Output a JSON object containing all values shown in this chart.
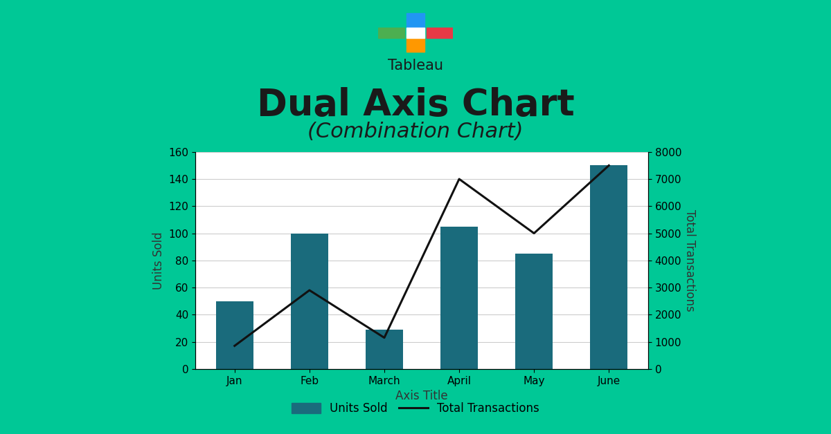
{
  "title": "Dual Axis Chart",
  "subtitle": "(Combination Chart)",
  "xlabel": "Axis Title",
  "ylabel_left": "Units Sold",
  "ylabel_right": "Total Transactions",
  "categories": [
    "Jan",
    "Feb",
    "March",
    "April",
    "May",
    "June"
  ],
  "units_sold": [
    50,
    100,
    29,
    105,
    85,
    150
  ],
  "total_transactions": [
    17,
    58,
    23,
    140,
    100,
    150
  ],
  "bar_color": "#1a6b7c",
  "line_color": "#111111",
  "background_color": "#00c896",
  "chart_bg_color": "#ffffff",
  "grid_color": "#cccccc",
  "ylim_left": [
    0,
    160
  ],
  "ylim_right": [
    0,
    8000
  ],
  "yticks_left": [
    0,
    20,
    40,
    60,
    80,
    100,
    120,
    140,
    160
  ],
  "yticks_right": [
    0,
    1000,
    2000,
    3000,
    4000,
    5000,
    6000,
    7000,
    8000
  ],
  "title_fontsize": 38,
  "subtitle_fontsize": 22,
  "label_fontsize": 12,
  "tick_fontsize": 11,
  "legend_fontsize": 12,
  "tableau_label": "Tableau",
  "tableau_label_fontsize": 15,
  "tableau_icon_colors": [
    "#e63946",
    "#2196f3",
    "#4caf50",
    "#ff9800"
  ]
}
